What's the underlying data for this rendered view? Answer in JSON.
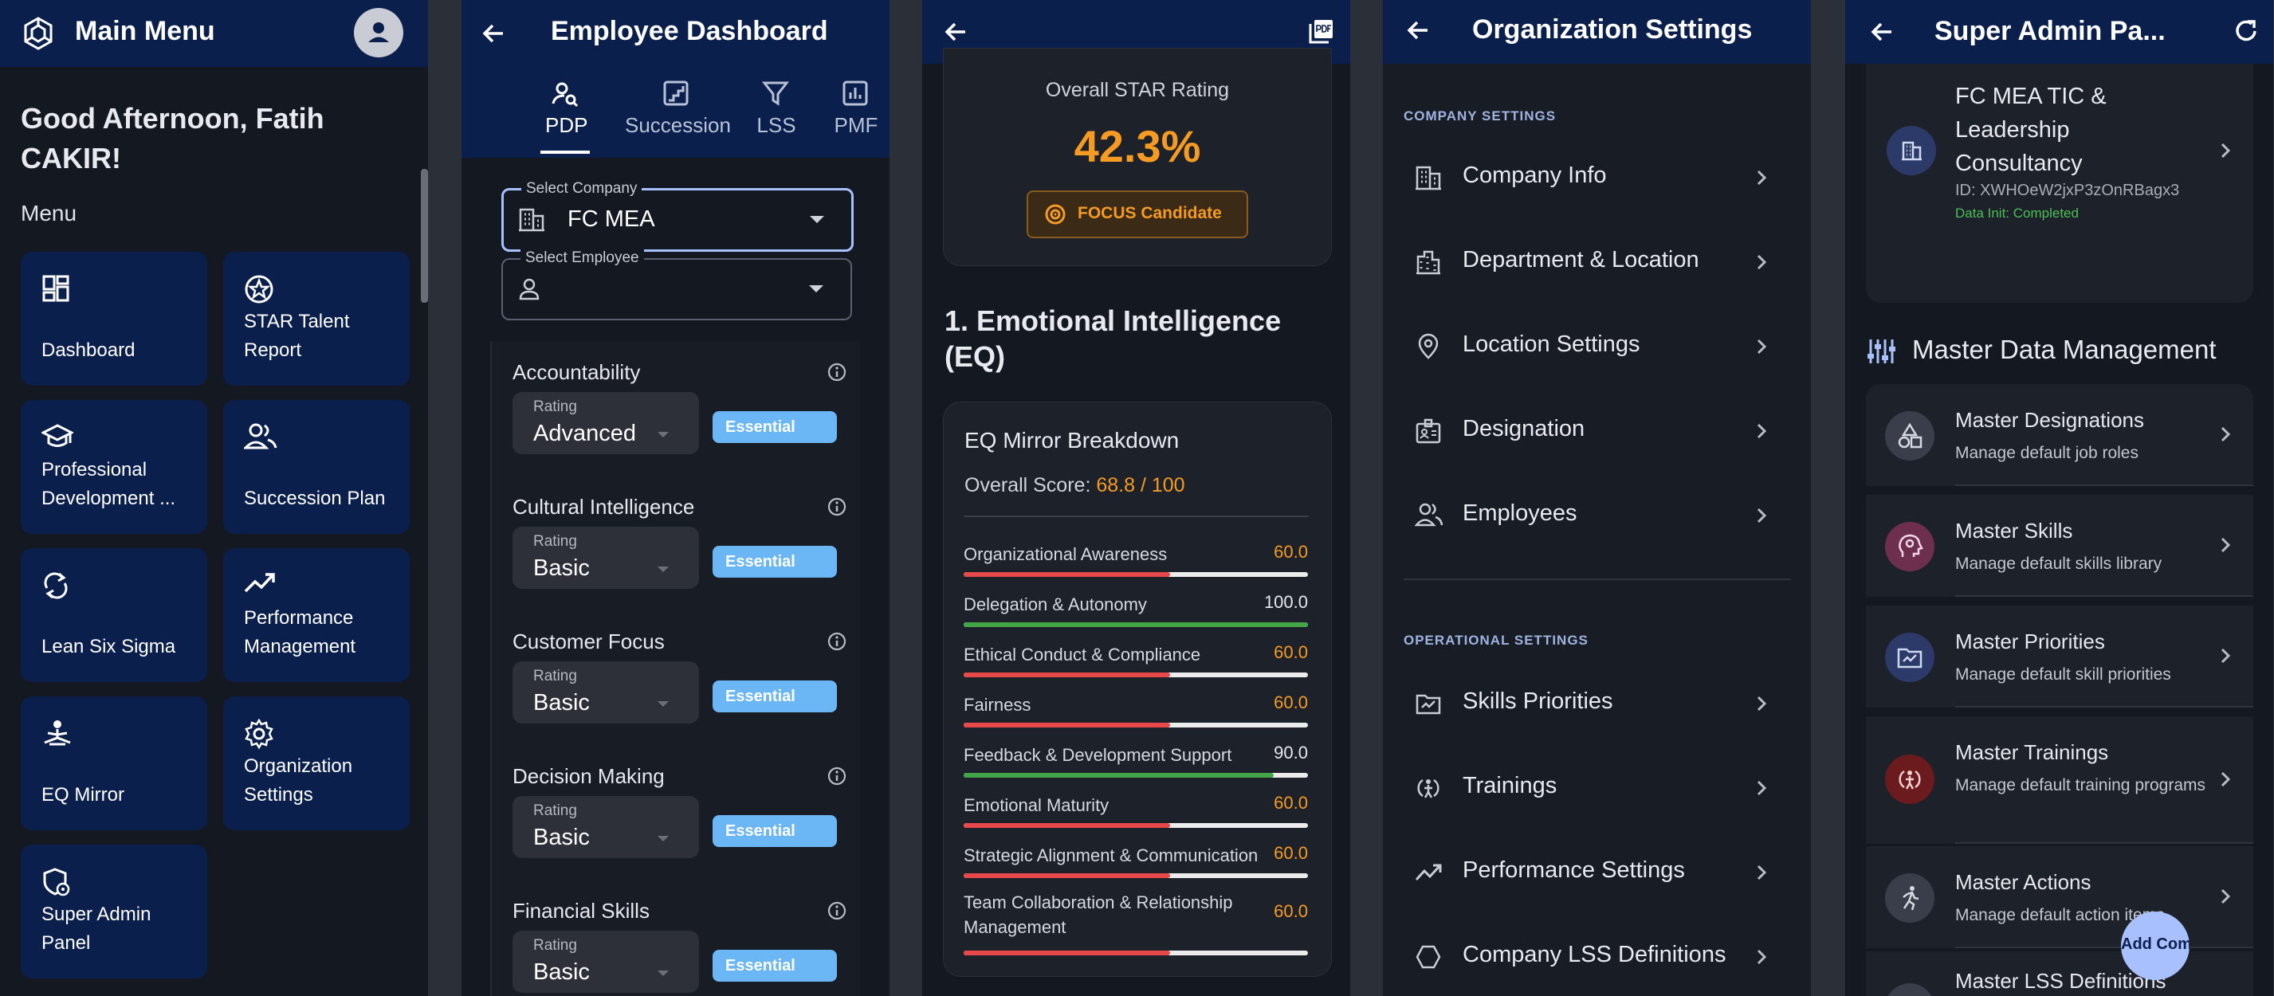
{
  "main_menu": {
    "title": "Main Menu",
    "greeting": "Good Afternoon, Fatih CAKIR!",
    "menu_label": "Menu",
    "tiles": [
      {
        "label": "Dashboard",
        "icon": "dashboard-icon"
      },
      {
        "label": "STAR Talent Report",
        "icon": "star-badge-icon"
      },
      {
        "label": "Professional Development ...",
        "icon": "graduation-cap-icon"
      },
      {
        "label": "Succession Plan",
        "icon": "people-icon"
      },
      {
        "label": "Lean Six Sigma",
        "icon": "sync-icon"
      },
      {
        "label": "Performance Management",
        "icon": "trending-up-icon"
      },
      {
        "label": "EQ Mirror",
        "icon": "meditation-icon"
      },
      {
        "label": "Organization Settings",
        "icon": "gear-icon"
      },
      {
        "label": "Super Admin Panel",
        "icon": "admin-shield-icon"
      }
    ]
  },
  "employee_dashboard": {
    "title": "Employee Dashboard",
    "tabs": [
      {
        "label": "PDP",
        "icon": "person-search-icon",
        "active": true
      },
      {
        "label": "Succession",
        "icon": "stairs-icon",
        "active": false
      },
      {
        "label": "LSS",
        "icon": "filter-icon",
        "active": false
      },
      {
        "label": "PMF",
        "icon": "bar-chart-icon",
        "active": false
      }
    ],
    "select_company": {
      "label": "Select Company",
      "value": "FC MEA"
    },
    "select_employee": {
      "label": "Select Employee",
      "value": ""
    },
    "rating_label": "Rating",
    "competencies": [
      {
        "name": "Accountability",
        "rating": "Advanced",
        "badge": "Essential"
      },
      {
        "name": "Cultural Intelligence",
        "rating": "Basic",
        "badge": "Essential"
      },
      {
        "name": "Customer Focus",
        "rating": "Basic",
        "badge": "Essential"
      },
      {
        "name": "Decision Making",
        "rating": "Basic",
        "badge": "Essential"
      },
      {
        "name": "Financial Skills",
        "rating": "Basic",
        "badge": "Essential"
      }
    ]
  },
  "star_report": {
    "overall_label": "Overall STAR Rating",
    "overall_value": "42.3%",
    "candidate_badge": "FOCUS Candidate",
    "section_title": "1. Emotional Intelligence (EQ)",
    "card_title": "EQ Mirror Breakdown",
    "overall_score_label": "Overall Score:",
    "overall_score_value": "68.8 / 100",
    "colors": {
      "orange": "#f59a23",
      "red": "#e8484a",
      "green": "#43a548"
    },
    "rows": [
      {
        "name": "Organizational Awareness",
        "value": "60.0",
        "score": 60
      },
      {
        "name": "Delegation & Autonomy",
        "value": "100.0",
        "score": 100
      },
      {
        "name": "Ethical Conduct & Compliance",
        "value": "60.0",
        "score": 60
      },
      {
        "name": "Fairness",
        "value": "60.0",
        "score": 60
      },
      {
        "name": "Feedback & Development Support",
        "value": "90.0",
        "score": 90
      },
      {
        "name": "Emotional Maturity",
        "value": "60.0",
        "score": 60
      },
      {
        "name": "Strategic Alignment & Communication",
        "value": "60.0",
        "score": 60
      },
      {
        "name": "Team Collaboration & Relationship Management",
        "value": "60.0",
        "score": 60
      }
    ]
  },
  "org_settings": {
    "title": "Organization Settings",
    "company_section": "COMPANY SETTINGS",
    "company_items": [
      {
        "label": "Company Info",
        "icon": "building-icon"
      },
      {
        "label": "Department & Location",
        "icon": "corporate-icon"
      },
      {
        "label": "Location Settings",
        "icon": "location-pin-icon"
      },
      {
        "label": "Designation",
        "icon": "badge-icon"
      },
      {
        "label": "Employees",
        "icon": "people-icon"
      }
    ],
    "operational_section": "OPERATIONAL SETTINGS",
    "operational_items": [
      {
        "label": "Skills Priorities",
        "icon": "priority-folder-icon"
      },
      {
        "label": "Trainings",
        "icon": "training-icon"
      },
      {
        "label": "Performance Settings",
        "icon": "trending-up-icon"
      },
      {
        "label": "Company LSS Definitions",
        "icon": "hexagon-icon"
      }
    ]
  },
  "super_admin": {
    "title": "Super Admin Pa...",
    "company": {
      "name": "FC MEA TIC & Leadership Consultancy",
      "id": "ID: XWHOeW2jxP3zOnRBagx3",
      "status": "Data Init: Completed"
    },
    "section_title": "Master Data Management",
    "items": [
      {
        "title": "Master Designations",
        "subtitle": "Manage default job roles",
        "icon": "shapes-icon",
        "color": "#3a3e4a"
      },
      {
        "title": "Master Skills",
        "subtitle": "Manage default skills library",
        "icon": "lightbulb-head-icon",
        "color": "#6e2f4e"
      },
      {
        "title": "Master Priorities",
        "subtitle": "Manage default skill priorities",
        "icon": "priority-image-icon",
        "color": "#2c3a6a"
      },
      {
        "title": "Master Trainings",
        "subtitle": "Manage default training programs",
        "icon": "training-icon",
        "color": "#6b1a1e"
      },
      {
        "title": "Master Actions",
        "subtitle": "Manage default action items",
        "icon": "running-icon",
        "color": "#3a3e4a"
      },
      {
        "title": "Master LSS Definitions",
        "subtitle": "",
        "icon": "hexagon-icon",
        "color": "#3a3e4a"
      }
    ],
    "fab_label": "Add Com"
  }
}
